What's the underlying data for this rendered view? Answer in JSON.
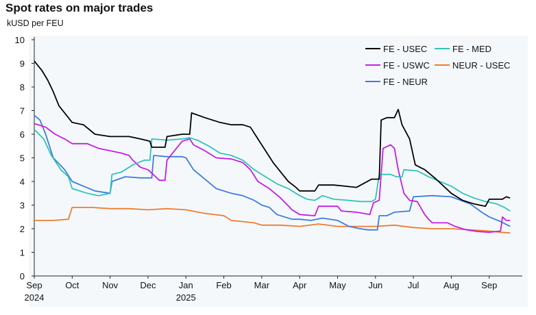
{
  "header": {
    "title": "Spot rates on major trades",
    "subtitle": "kUSD per FEU"
  },
  "chart_data": {
    "type": "line",
    "title": "Spot rates on major trades",
    "ylabel": "kUSD per FEU",
    "xlabel": "",
    "ylim": [
      0,
      10
    ],
    "xlim": [
      0,
      12.8
    ],
    "y_ticks": [
      "0",
      "1",
      "2",
      "3",
      "4",
      "5",
      "6",
      "7",
      "8",
      "9",
      "10"
    ],
    "x_ticks": [
      {
        "pos": 0,
        "label": "Sep",
        "year": "2024"
      },
      {
        "pos": 1,
        "label": "Oct",
        "year": ""
      },
      {
        "pos": 2,
        "label": "Nov",
        "year": ""
      },
      {
        "pos": 3,
        "label": "Dec",
        "year": ""
      },
      {
        "pos": 4,
        "label": "Jan",
        "year": "2025"
      },
      {
        "pos": 5,
        "label": "Feb",
        "year": ""
      },
      {
        "pos": 6,
        "label": "Mar",
        "year": ""
      },
      {
        "pos": 7,
        "label": "Apr",
        "year": ""
      },
      {
        "pos": 8,
        "label": "May",
        "year": ""
      },
      {
        "pos": 9,
        "label": "Jun",
        "year": ""
      },
      {
        "pos": 10,
        "label": "Jul",
        "year": ""
      },
      {
        "pos": 11,
        "label": "Aug",
        "year": ""
      },
      {
        "pos": 12,
        "label": "Sep",
        "year": ""
      }
    ],
    "legend_position": "top-right",
    "series": [
      {
        "name": "FE - USEC",
        "color": "#000000",
        "points": [
          [
            0,
            9.1
          ],
          [
            0.2,
            8.7
          ],
          [
            0.35,
            8.3
          ],
          [
            0.5,
            7.8
          ],
          [
            0.65,
            7.2
          ],
          [
            0.8,
            6.9
          ],
          [
            1.0,
            6.5
          ],
          [
            1.3,
            6.4
          ],
          [
            1.6,
            6.0
          ],
          [
            2.0,
            5.9
          ],
          [
            2.5,
            5.9
          ],
          [
            2.8,
            5.8
          ],
          [
            3.05,
            5.7
          ],
          [
            3.1,
            5.45
          ],
          [
            3.45,
            5.45
          ],
          [
            3.5,
            5.9
          ],
          [
            3.9,
            6.0
          ],
          [
            4.1,
            6.0
          ],
          [
            4.15,
            6.9
          ],
          [
            4.5,
            6.7
          ],
          [
            4.9,
            6.5
          ],
          [
            5.2,
            6.4
          ],
          [
            5.5,
            6.4
          ],
          [
            5.7,
            6.3
          ],
          [
            5.9,
            5.8
          ],
          [
            6.1,
            5.3
          ],
          [
            6.3,
            4.8
          ],
          [
            6.5,
            4.4
          ],
          [
            6.7,
            4.0
          ],
          [
            6.9,
            3.75
          ],
          [
            7.0,
            3.6
          ],
          [
            7.4,
            3.6
          ],
          [
            7.5,
            3.85
          ],
          [
            7.9,
            3.85
          ],
          [
            8.2,
            3.8
          ],
          [
            8.5,
            3.75
          ],
          [
            8.9,
            4.1
          ],
          [
            9.1,
            4.1
          ],
          [
            9.15,
            6.6
          ],
          [
            9.3,
            6.7
          ],
          [
            9.5,
            6.7
          ],
          [
            9.6,
            7.05
          ],
          [
            9.7,
            6.4
          ],
          [
            9.9,
            5.8
          ],
          [
            10.05,
            4.7
          ],
          [
            10.3,
            4.5
          ],
          [
            10.6,
            4.1
          ],
          [
            11.0,
            3.5
          ],
          [
            11.3,
            3.2
          ],
          [
            11.6,
            3.05
          ],
          [
            11.9,
            2.95
          ],
          [
            12.0,
            3.25
          ],
          [
            12.35,
            3.25
          ],
          [
            12.45,
            3.35
          ],
          [
            12.55,
            3.3
          ]
        ]
      },
      {
        "name": "FE - MED",
        "color": "#2ec4b6",
        "points": [
          [
            0,
            6.2
          ],
          [
            0.25,
            5.8
          ],
          [
            0.45,
            5.1
          ],
          [
            0.7,
            4.5
          ],
          [
            0.9,
            4.2
          ],
          [
            1.0,
            3.7
          ],
          [
            1.4,
            3.5
          ],
          [
            1.7,
            3.4
          ],
          [
            2.0,
            3.5
          ],
          [
            2.05,
            4.3
          ],
          [
            2.3,
            4.4
          ],
          [
            2.6,
            4.7
          ],
          [
            2.9,
            4.9
          ],
          [
            3.05,
            4.9
          ],
          [
            3.1,
            5.8
          ],
          [
            3.5,
            5.75
          ],
          [
            3.9,
            5.8
          ],
          [
            4.1,
            5.85
          ],
          [
            4.3,
            5.75
          ],
          [
            4.6,
            5.5
          ],
          [
            4.9,
            5.2
          ],
          [
            5.2,
            5.1
          ],
          [
            5.5,
            4.9
          ],
          [
            5.8,
            4.5
          ],
          [
            6.1,
            4.2
          ],
          [
            6.4,
            3.9
          ],
          [
            6.7,
            3.7
          ],
          [
            7.0,
            3.4
          ],
          [
            7.2,
            3.25
          ],
          [
            7.4,
            3.2
          ],
          [
            7.6,
            3.4
          ],
          [
            7.9,
            3.25
          ],
          [
            8.3,
            3.2
          ],
          [
            8.6,
            3.15
          ],
          [
            8.9,
            3.15
          ],
          [
            9.0,
            3.25
          ],
          [
            9.1,
            4.3
          ],
          [
            9.4,
            4.3
          ],
          [
            9.55,
            4.2
          ],
          [
            9.7,
            4.2
          ],
          [
            9.75,
            4.5
          ],
          [
            10.1,
            4.45
          ],
          [
            10.4,
            4.2
          ],
          [
            10.7,
            4.0
          ],
          [
            11.0,
            3.8
          ],
          [
            11.3,
            3.5
          ],
          [
            11.6,
            3.3
          ],
          [
            11.9,
            3.15
          ],
          [
            12.2,
            3.05
          ],
          [
            12.4,
            2.9
          ],
          [
            12.55,
            2.75
          ]
        ]
      },
      {
        "name": "FE - USWC",
        "color": "#c61ae8",
        "points": [
          [
            0,
            6.45
          ],
          [
            0.3,
            6.3
          ],
          [
            0.55,
            6.0
          ],
          [
            0.8,
            5.8
          ],
          [
            1.0,
            5.6
          ],
          [
            1.4,
            5.6
          ],
          [
            1.7,
            5.4
          ],
          [
            2.0,
            5.3
          ],
          [
            2.3,
            5.2
          ],
          [
            2.5,
            5.1
          ],
          [
            2.6,
            4.9
          ],
          [
            2.8,
            4.6
          ],
          [
            3.0,
            4.5
          ],
          [
            3.2,
            4.2
          ],
          [
            3.3,
            4.05
          ],
          [
            3.45,
            4.05
          ],
          [
            3.5,
            4.9
          ],
          [
            3.9,
            5.7
          ],
          [
            4.1,
            5.8
          ],
          [
            4.2,
            5.55
          ],
          [
            4.5,
            5.3
          ],
          [
            4.8,
            5.0
          ],
          [
            5.2,
            4.95
          ],
          [
            5.5,
            4.8
          ],
          [
            5.7,
            4.5
          ],
          [
            5.9,
            4.0
          ],
          [
            6.2,
            3.7
          ],
          [
            6.5,
            3.3
          ],
          [
            6.8,
            2.8
          ],
          [
            7.0,
            2.6
          ],
          [
            7.4,
            2.55
          ],
          [
            7.5,
            2.95
          ],
          [
            8.0,
            2.95
          ],
          [
            8.1,
            2.75
          ],
          [
            8.5,
            2.7
          ],
          [
            8.85,
            2.6
          ],
          [
            8.95,
            3.1
          ],
          [
            9.1,
            3.2
          ],
          [
            9.2,
            5.4
          ],
          [
            9.4,
            5.55
          ],
          [
            9.5,
            5.4
          ],
          [
            9.6,
            4.5
          ],
          [
            9.75,
            3.5
          ],
          [
            9.9,
            3.2
          ],
          [
            10.1,
            3.15
          ],
          [
            10.3,
            2.6
          ],
          [
            10.4,
            2.4
          ],
          [
            10.5,
            2.25
          ],
          [
            10.9,
            2.25
          ],
          [
            11.1,
            2.1
          ],
          [
            11.4,
            1.95
          ],
          [
            11.7,
            1.88
          ],
          [
            12.0,
            1.85
          ],
          [
            12.3,
            1.9
          ],
          [
            12.35,
            2.5
          ],
          [
            12.45,
            2.35
          ],
          [
            12.55,
            2.35
          ]
        ]
      },
      {
        "name": "NEUR - USEC",
        "color": "#f07b2f",
        "points": [
          [
            0,
            2.35
          ],
          [
            0.5,
            2.35
          ],
          [
            0.9,
            2.4
          ],
          [
            1.0,
            2.9
          ],
          [
            1.5,
            2.9
          ],
          [
            2.0,
            2.85
          ],
          [
            2.5,
            2.85
          ],
          [
            3.0,
            2.8
          ],
          [
            3.5,
            2.85
          ],
          [
            4.0,
            2.8
          ],
          [
            4.5,
            2.65
          ],
          [
            5.0,
            2.55
          ],
          [
            5.2,
            2.35
          ],
          [
            5.8,
            2.25
          ],
          [
            6.0,
            2.15
          ],
          [
            6.5,
            2.15
          ],
          [
            7.0,
            2.1
          ],
          [
            7.5,
            2.2
          ],
          [
            8.0,
            2.1
          ],
          [
            8.5,
            2.1
          ],
          [
            9.0,
            2.1
          ],
          [
            9.5,
            2.15
          ],
          [
            10.0,
            2.05
          ],
          [
            10.5,
            2.0
          ],
          [
            11.0,
            2.0
          ],
          [
            11.5,
            1.95
          ],
          [
            12.0,
            1.9
          ],
          [
            12.3,
            1.85
          ],
          [
            12.55,
            1.82
          ]
        ]
      },
      {
        "name": "FE - NEUR",
        "color": "#3b7ce0",
        "points": [
          [
            0,
            6.8
          ],
          [
            0.15,
            6.6
          ],
          [
            0.3,
            6.0
          ],
          [
            0.5,
            5.0
          ],
          [
            0.8,
            4.5
          ],
          [
            1.0,
            4.0
          ],
          [
            1.3,
            3.8
          ],
          [
            1.6,
            3.6
          ],
          [
            2.0,
            3.5
          ],
          [
            2.05,
            4.0
          ],
          [
            2.4,
            4.2
          ],
          [
            2.8,
            4.15
          ],
          [
            3.1,
            4.15
          ],
          [
            3.15,
            5.1
          ],
          [
            3.5,
            5.05
          ],
          [
            3.9,
            5.05
          ],
          [
            4.0,
            5.0
          ],
          [
            4.2,
            4.5
          ],
          [
            4.5,
            4.1
          ],
          [
            4.8,
            3.7
          ],
          [
            5.2,
            3.5
          ],
          [
            5.5,
            3.4
          ],
          [
            5.8,
            3.2
          ],
          [
            6.0,
            3.0
          ],
          [
            6.2,
            2.9
          ],
          [
            6.4,
            2.6
          ],
          [
            6.8,
            2.4
          ],
          [
            7.0,
            2.4
          ],
          [
            7.3,
            2.35
          ],
          [
            7.6,
            2.45
          ],
          [
            8.0,
            2.35
          ],
          [
            8.3,
            2.1
          ],
          [
            8.6,
            2.0
          ],
          [
            8.8,
            1.95
          ],
          [
            9.05,
            1.95
          ],
          [
            9.1,
            2.55
          ],
          [
            9.3,
            2.55
          ],
          [
            9.5,
            2.7
          ],
          [
            9.9,
            2.75
          ],
          [
            10.0,
            3.35
          ],
          [
            10.5,
            3.4
          ],
          [
            11.0,
            3.35
          ],
          [
            11.5,
            3.05
          ],
          [
            11.8,
            2.7
          ],
          [
            12.0,
            2.5
          ],
          [
            12.3,
            2.3
          ],
          [
            12.55,
            2.1
          ]
        ]
      }
    ]
  }
}
